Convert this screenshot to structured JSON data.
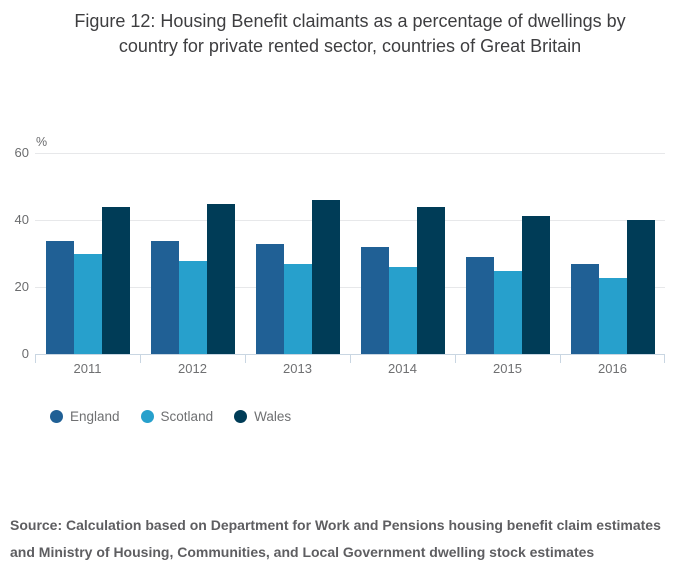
{
  "title": {
    "line1": "Figure 12: Housing Benefit claimants as a percentage of dwellings by",
    "line2": "country for private rented sector, countries of Great Britain"
  },
  "chart_data": {
    "type": "bar",
    "title": "Figure 12: Housing Benefit claimants as a percentage of dwellings by country for private rented sector, countries of Great Britain",
    "unit_label": "%",
    "categories": [
      "2011",
      "2012",
      "2013",
      "2014",
      "2015",
      "2016"
    ],
    "series": [
      {
        "name": "England",
        "color": "#206095",
        "values": [
          33.7,
          33.8,
          32.8,
          32.0,
          29.1,
          27.0
        ]
      },
      {
        "name": "Scotland",
        "color": "#27a0cc",
        "values": [
          30.0,
          27.8,
          26.9,
          26.1,
          24.7,
          22.7
        ]
      },
      {
        "name": "Wales",
        "color": "#003c57",
        "values": [
          44.0,
          44.8,
          46.0,
          44.0,
          41.1,
          39.9
        ]
      }
    ],
    "xlabel": "",
    "ylabel": "%",
    "ylim": [
      0,
      60
    ],
    "y_ticks": [
      0,
      20,
      40,
      60
    ],
    "grid": "horizontal",
    "legend_position": "bottom",
    "colors": {
      "gridline": "#e7e8ea",
      "axis_line": "#c9d6e2",
      "tick_label": "#6b6c6e"
    }
  },
  "footer": {
    "line1": "Source: Calculation based on Department for Work and Pensions housing benefit claim estimates",
    "line2": "and Ministry of Housing, Communities, and Local Government dwelling stock estimates"
  }
}
